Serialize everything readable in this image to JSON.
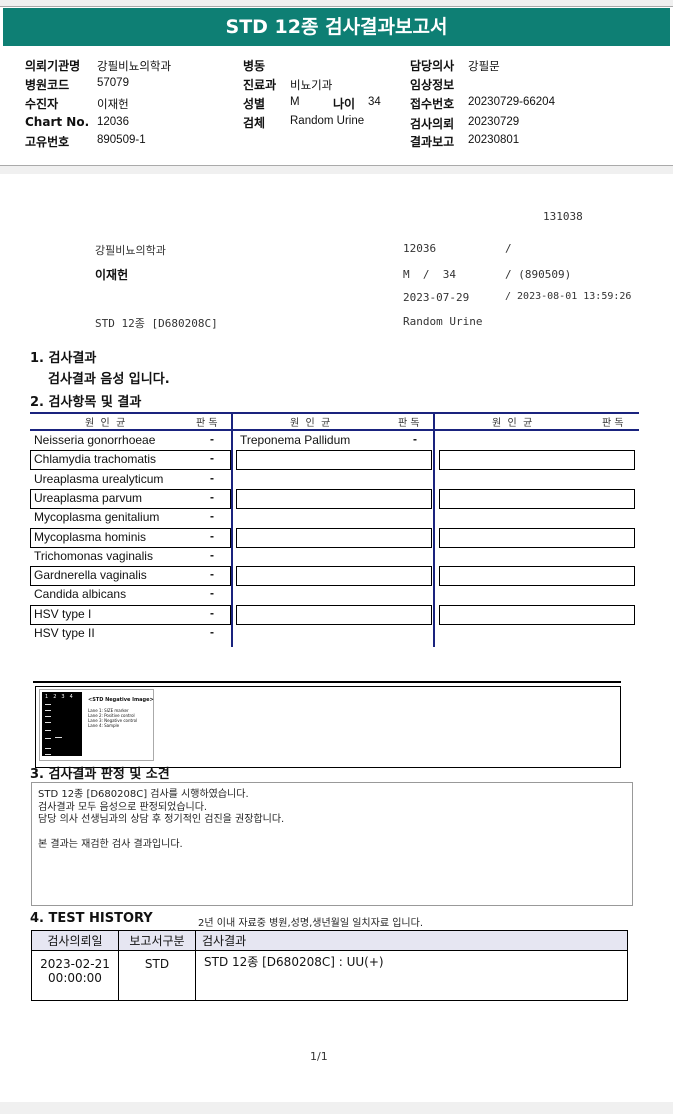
{
  "title": "STD 12종 검사결과보고서",
  "info": {
    "inst_label": "의뢰기관명",
    "inst": "강필비뇨의학과",
    "code_label": "병원코드",
    "code": "57079",
    "patient_label": "수진자",
    "patient": "이재헌",
    "chart_label": "Chart No.",
    "chart": "12036",
    "uid_label": "고유번호",
    "uid": "890509-1",
    "ward_label": "병동",
    "dept_label": "진료과",
    "dept": "비뇨기과",
    "sex_label": "성별",
    "sex": "M",
    "age_label": "나이",
    "age": "34",
    "specimen_label": "검체",
    "specimen": "Random Urine",
    "doctor_label": "담당의사",
    "doctor": "강필문",
    "clinical_label": "임상정보",
    "receipt_label": "접수번호",
    "receipt": "20230729-66204",
    "request_label": "검사의뢰",
    "request": "20230729",
    "report_label": "결과보고",
    "report": "20230801"
  },
  "summary": {
    "id": "131038",
    "inst": "강필비뇨의학과",
    "chart": "12036",
    "slash1": "/",
    "patient": "이재헌",
    "sexage": "M  /  34",
    "birth": "/ (890509)",
    "date1": "2023-07-29",
    "date2": "/ 2023-08-01 13:59:26",
    "test": "STD 12종 [D680208C]",
    "specimen": "Random Urine"
  },
  "s1": {
    "title": "1. 검사결과",
    "text": "검사결과 음성 입니다."
  },
  "s2": {
    "title": "2. 검사항목 및 결과",
    "h_org": "원  인  균",
    "h_res": "판 독",
    "col1": [
      {
        "n": "Neisseria gonorrhoeae",
        "r": "-"
      },
      {
        "n": "Chlamydia trachomatis",
        "r": "-"
      },
      {
        "n": "Ureaplasma urealyticum",
        "r": "-"
      },
      {
        "n": "Ureaplasma parvum",
        "r": "-"
      },
      {
        "n": "Mycoplasma genitalium",
        "r": "-"
      },
      {
        "n": "Mycoplasma hominis",
        "r": "-"
      },
      {
        "n": "Trichomonas vaginalis",
        "r": "-"
      },
      {
        "n": "Gardnerella vaginalis",
        "r": "-"
      },
      {
        "n": "Candida albicans",
        "r": "-"
      },
      {
        "n": "HSV type I",
        "r": "-"
      },
      {
        "n": "HSV type II",
        "r": "-"
      }
    ],
    "col2": [
      {
        "n": "Treponema Pallidum",
        "r": "-"
      }
    ]
  },
  "image": {
    "title": "<STD Negative Image>",
    "lanes": [
      "Lane 1: SIZE marker",
      "Lane 2: Positive control",
      "Lane 3: Negative control",
      "Lane 4: Sample"
    ],
    "nums": [
      "1",
      "2",
      "3",
      "4"
    ]
  },
  "s3": {
    "title": "3. 검사결과 판정 및 소견",
    "lines": [
      "STD 12종 [D680208C] 검사를 시행하였습니다.",
      "검사결과 모두 음성으로 판정되었습니다.",
      "담당 의사 선생님과의 상담 후 정기적인 검진을 권장합니다.",
      "",
      "본 결과는 재검한 검사 결과입니다."
    ]
  },
  "s4": {
    "title": "4. TEST HISTORY",
    "note": "2년 이내 자료중 병원,성명,생년월일 일치자료 입니다.",
    "headers": [
      "검사의뢰일",
      "보고서구분",
      "검사결과"
    ],
    "row": {
      "date": "2023-02-21",
      "time": "00:00:00",
      "type": "STD",
      "result": "STD 12종 [D680208C] : UU(+)"
    }
  },
  "page": "1/1",
  "colors": {
    "banner": "#0e7f74",
    "grid": "#1a237e"
  }
}
